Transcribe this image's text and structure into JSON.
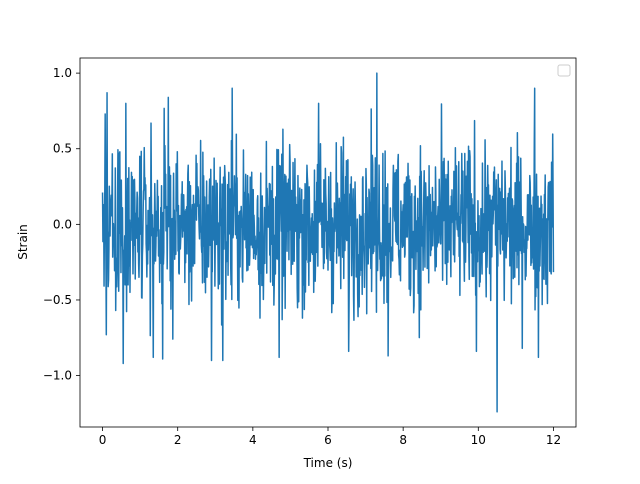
{
  "chart_data": {
    "type": "line",
    "title": "",
    "xlabel": "Time (s)",
    "ylabel": "Strain",
    "xlim": [
      -0.6,
      12.6
    ],
    "ylim": [
      -1.34,
      1.1
    ],
    "x_ticks": [
      0,
      2,
      4,
      6,
      8,
      10,
      12
    ],
    "x_tick_labels": [
      "0",
      "2",
      "4",
      "6",
      "8",
      "10",
      "12"
    ],
    "y_ticks": [
      -1.0,
      -0.5,
      0.0,
      0.5,
      1.0
    ],
    "y_tick_labels": [
      "−1.0",
      "−0.5",
      "0.0",
      "0.5",
      "1.0"
    ],
    "grid": false,
    "legend": {
      "position": "upper-right",
      "entries": []
    },
    "series": [
      {
        "color": "#1f77b4",
        "x_range": [
          0,
          12
        ],
        "sample_step": 0.01,
        "typical_envelope": [
          -0.5,
          0.5
        ],
        "peaks": [
          {
            "x": 0.07,
            "y": 0.73
          },
          {
            "x": 0.1,
            "y": -0.73
          },
          {
            "x": 0.12,
            "y": 0.87
          },
          {
            "x": 0.55,
            "y": -0.92
          },
          {
            "x": 0.62,
            "y": 0.8
          },
          {
            "x": 1.35,
            "y": -0.88
          },
          {
            "x": 1.6,
            "y": -0.89
          },
          {
            "x": 1.75,
            "y": 0.84
          },
          {
            "x": 2.9,
            "y": -0.9
          },
          {
            "x": 3.2,
            "y": -0.9
          },
          {
            "x": 3.45,
            "y": 0.9
          },
          {
            "x": 4.7,
            "y": -0.88
          },
          {
            "x": 5.75,
            "y": 0.8
          },
          {
            "x": 6.55,
            "y": -0.84
          },
          {
            "x": 7.3,
            "y": 1.0
          },
          {
            "x": 7.6,
            "y": -0.87
          },
          {
            "x": 9.95,
            "y": -0.84
          },
          {
            "x": 10.5,
            "y": -1.24
          },
          {
            "x": 11.5,
            "y": 0.9
          },
          {
            "x": 11.6,
            "y": -0.88
          }
        ]
      }
    ]
  }
}
